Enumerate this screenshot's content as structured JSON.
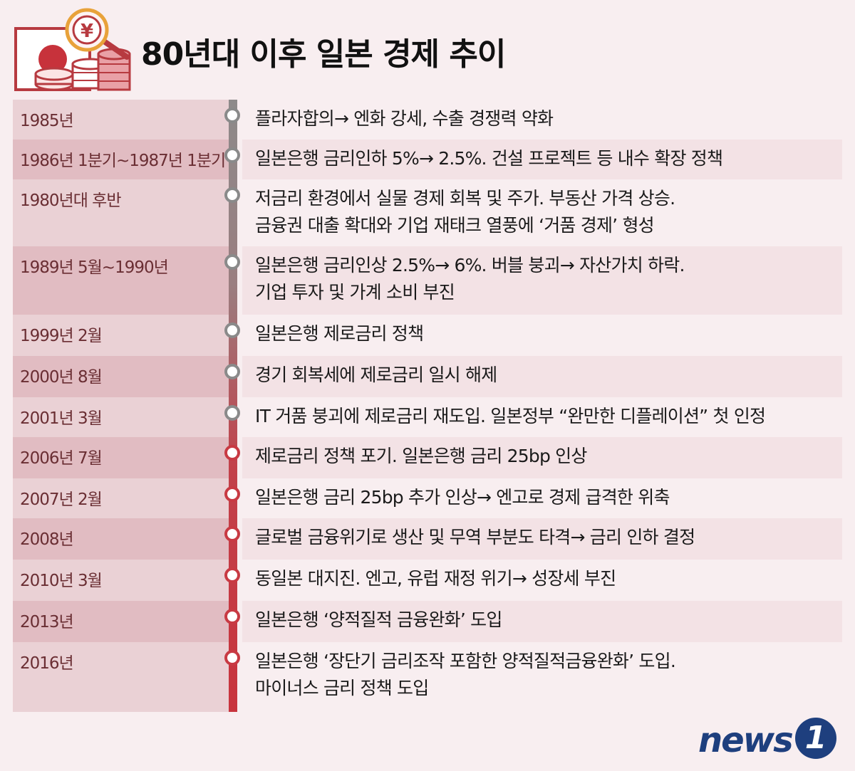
{
  "header": {
    "title": "80년대 이후 일본 경제 추이"
  },
  "icons": {
    "flag": "japan-flag-icon",
    "magnifier": "yen-magnifier-icon",
    "coins": "coin-stack-icon"
  },
  "colors": {
    "accent": "#c8343d",
    "date": "#6a2e33",
    "logo": "#1e3f7e"
  },
  "timeline": [
    {
      "date": "1985년",
      "lines": [
        "플라자합의→ 엔화 강세, 수출 경쟁력 약화"
      ]
    },
    {
      "date": "1986년 1분기~1987년 1분기",
      "lines": [
        "일본은행 금리인하 5%→ 2.5%. 건설 프로젝트 등 내수 확장 정책"
      ]
    },
    {
      "date": "1980년대 후반",
      "lines": [
        "저금리 환경에서 실물 경제 회복 및 주가. 부동산 가격 상승.",
        "금융권 대출 확대와 기업 재태크 열풍에 ‘거품 경제’ 형성"
      ]
    },
    {
      "date": "1989년 5월~1990년",
      "lines": [
        "일본은행 금리인상 2.5%→ 6%. 버블 붕괴→ 자산가치 하락.",
        "기업 투자 및 가계 소비 부진"
      ]
    },
    {
      "date": "1999년 2월",
      "lines": [
        "일본은행 제로금리 정책"
      ]
    },
    {
      "date": "2000년 8월",
      "lines": [
        "경기 회복세에 제로금리 일시 해제"
      ]
    },
    {
      "date": "2001년 3월",
      "lines": [
        "IT 거품 붕괴에 제로금리 재도입. 일본정부 “완만한 디플레이션” 첫 인정"
      ]
    },
    {
      "date": "2006년 7월",
      "lines": [
        "제로금리 정책 포기. 일본은행 금리 25bp 인상"
      ]
    },
    {
      "date": "2007년 2월",
      "lines": [
        "일본은행 금리 25bp 추가 인상→ 엔고로 경제 급격한 위축"
      ]
    },
    {
      "date": "2008년",
      "lines": [
        "글로벌 금융위기로 생산 및 무역 부분도 타격→ 금리 인하 결정"
      ]
    },
    {
      "date": "2010년 3월",
      "lines": [
        "동일본 대지진. 엔고, 유럽 재정 위기→ 성장세 부진"
      ]
    },
    {
      "date": "2013년",
      "lines": [
        "일본은행 ‘양적질적 금융완화’ 도입"
      ]
    },
    {
      "date": "2016년",
      "lines": [
        "일본은행 ‘장단기 금리조작 포함한 양적질적금융완화’ 도입.",
        "마이너스 금리 정책 도입"
      ]
    }
  ],
  "logo": {
    "text": "news",
    "mark": "1"
  }
}
